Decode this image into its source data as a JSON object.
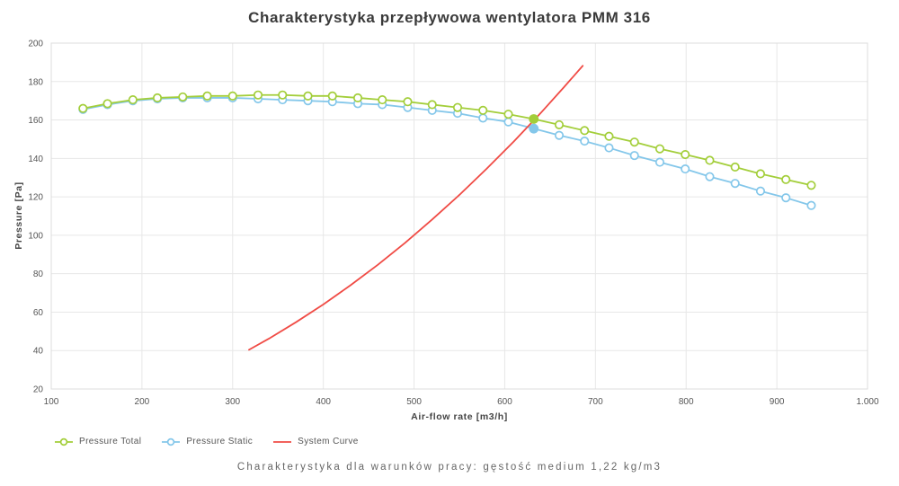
{
  "colors": {
    "pressure_total": "#a3ce3a",
    "pressure_static": "#84c7ea",
    "system_curve": "#f04b45",
    "grid": "#e7e7e7",
    "plot_border": "#dcdcdc",
    "tick_text": "#555555",
    "title_text": "#3a3a3a"
  },
  "chart_data": {
    "type": "line",
    "title": "Charakterystyka przepływowa wentylatora PMM 316",
    "subtitle": "Charakterystyka dla warunków pracy: gęstość medium 1,22 kg/m3",
    "xlabel": "Air-flow rate [m3/h]",
    "ylabel": "Pressure [Pa]",
    "xlim": [
      100,
      1000
    ],
    "ylim": [
      20,
      200
    ],
    "grid": true,
    "legend_position": "bottom-left",
    "x_ticks": {
      "values": [
        100,
        200,
        300,
        400,
        500,
        600,
        700,
        800,
        900,
        1000
      ],
      "labels": [
        "100",
        "200",
        "300",
        "400",
        "500",
        "600",
        "700",
        "800",
        "900",
        "1.000"
      ]
    },
    "y_ticks": {
      "values": [
        20,
        40,
        60,
        80,
        100,
        120,
        140,
        160,
        180,
        200
      ],
      "labels": [
        "20",
        "40",
        "60",
        "80",
        "100",
        "120",
        "140",
        "160",
        "180",
        "200"
      ]
    },
    "series": [
      {
        "name": "Pressure Total",
        "color": "#a3ce3a",
        "marker": "open-circle",
        "x": [
          135,
          162,
          190,
          217,
          245,
          272,
          300,
          328,
          355,
          383,
          410,
          438,
          465,
          493,
          520,
          548,
          576,
          604,
          632,
          660,
          688,
          715,
          743,
          771,
          799,
          826,
          854,
          882,
          910,
          938
        ],
        "y": [
          166,
          168.5,
          170.5,
          171.5,
          172,
          172.5,
          172.5,
          173,
          173,
          172.5,
          172.5,
          171.5,
          170.5,
          169.5,
          168,
          166.5,
          165,
          163,
          160.5,
          157.5,
          154.5,
          151.5,
          148.5,
          145,
          142,
          139,
          135.5,
          132,
          129,
          126
        ]
      },
      {
        "name": "Pressure Static",
        "color": "#84c7ea",
        "marker": "open-circle",
        "x": [
          135,
          162,
          190,
          217,
          245,
          272,
          300,
          328,
          355,
          383,
          410,
          438,
          465,
          493,
          520,
          548,
          576,
          604,
          632,
          660,
          688,
          715,
          743,
          771,
          799,
          826,
          854,
          882,
          910,
          938
        ],
        "y": [
          165.5,
          168,
          170,
          171,
          171.5,
          171.5,
          171.5,
          171,
          170.5,
          170,
          169.5,
          168.5,
          168,
          166.5,
          165,
          163.5,
          161,
          159,
          155.5,
          152,
          149,
          145.5,
          141.5,
          138,
          134.5,
          130.5,
          127,
          123,
          119.5,
          115.5
        ]
      },
      {
        "name": "System Curve",
        "color": "#f04b45",
        "marker": "none",
        "x": [
          318,
          340,
          370,
          400,
          430,
          460,
          490,
          520,
          550,
          580,
          610,
          640,
          665,
          686
        ],
        "y": [
          40.4,
          46.2,
          54.8,
          64,
          74,
          84.6,
          96,
          108.2,
          121,
          134.6,
          148.8,
          163.8,
          176.9,
          188.2
        ]
      }
    ],
    "operating_points": [
      {
        "series": "Pressure Total",
        "x": 632,
        "y": 160.5,
        "color": "#a3ce3a"
      },
      {
        "series": "Pressure Static",
        "x": 632,
        "y": 155.5,
        "color": "#84c7ea"
      }
    ]
  }
}
